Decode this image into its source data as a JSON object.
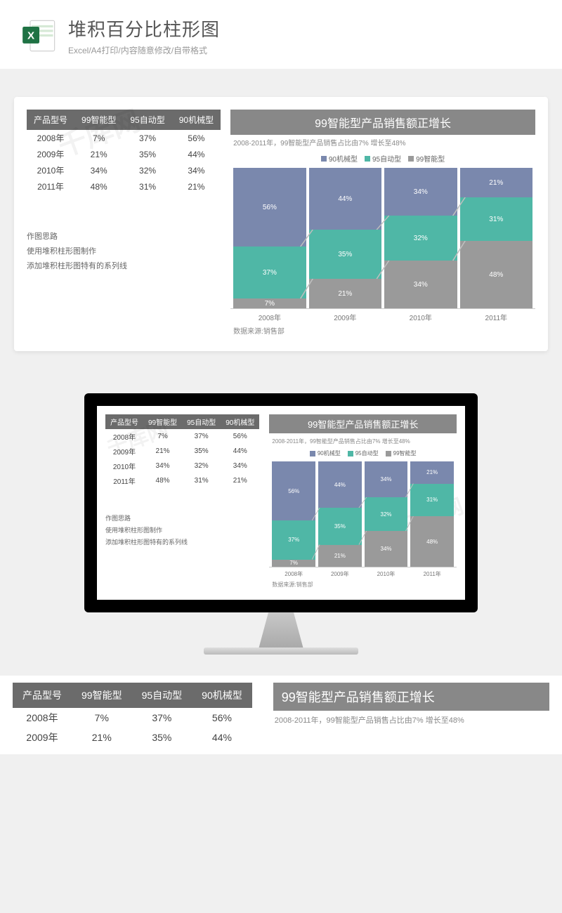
{
  "header": {
    "title": "堆积百分比柱形图",
    "subtitle": "Excel/A4打印/内容随意修改/自带格式"
  },
  "table": {
    "headers": [
      "产品型号",
      "99智能型",
      "95自动型",
      "90机械型"
    ],
    "rows": [
      [
        "2008年",
        "7%",
        "37%",
        "56%"
      ],
      [
        "2009年",
        "21%",
        "35%",
        "44%"
      ],
      [
        "2010年",
        "34%",
        "32%",
        "34%"
      ],
      [
        "2011年",
        "48%",
        "31%",
        "21%"
      ]
    ]
  },
  "notes": {
    "heading": "作图思路",
    "line1": "使用堆积柱形图制作",
    "line2": "添加堆积柱形图特有的系列线"
  },
  "chart": {
    "type": "stacked-bar-100",
    "title": "99智能型产品销售额正增长",
    "subtitle": "2008-2011年，99智能型产品销售占比由7% 增长至48%",
    "source": "数据来源:销售部",
    "categories": [
      "2008年",
      "2009年",
      "2010年",
      "2011年"
    ],
    "series": [
      {
        "name": "90机械型",
        "color": "#7a88ad",
        "values": [
          56,
          44,
          34,
          21
        ]
      },
      {
        "name": "95自动型",
        "color": "#4fb7a6",
        "values": [
          37,
          35,
          32,
          31
        ]
      },
      {
        "name": "99智能型",
        "color": "#9a9a9a",
        "values": [
          7,
          21,
          34,
          48
        ]
      }
    ],
    "line_color": "#bfbfbf",
    "background": "#ffffff"
  },
  "bottom": {
    "headers": [
      "产品型号",
      "99智能型",
      "95自动型",
      "90机械型"
    ],
    "rows": [
      [
        "2008年",
        "7%",
        "37%",
        "56%"
      ],
      [
        "2009年",
        "21%",
        "35%",
        "44%"
      ]
    ],
    "title": "99智能型产品销售额正增长",
    "subtitle": "2008-2011年，99智能型产品销售占比由7% 增长至48%"
  },
  "watermark": "千库网"
}
